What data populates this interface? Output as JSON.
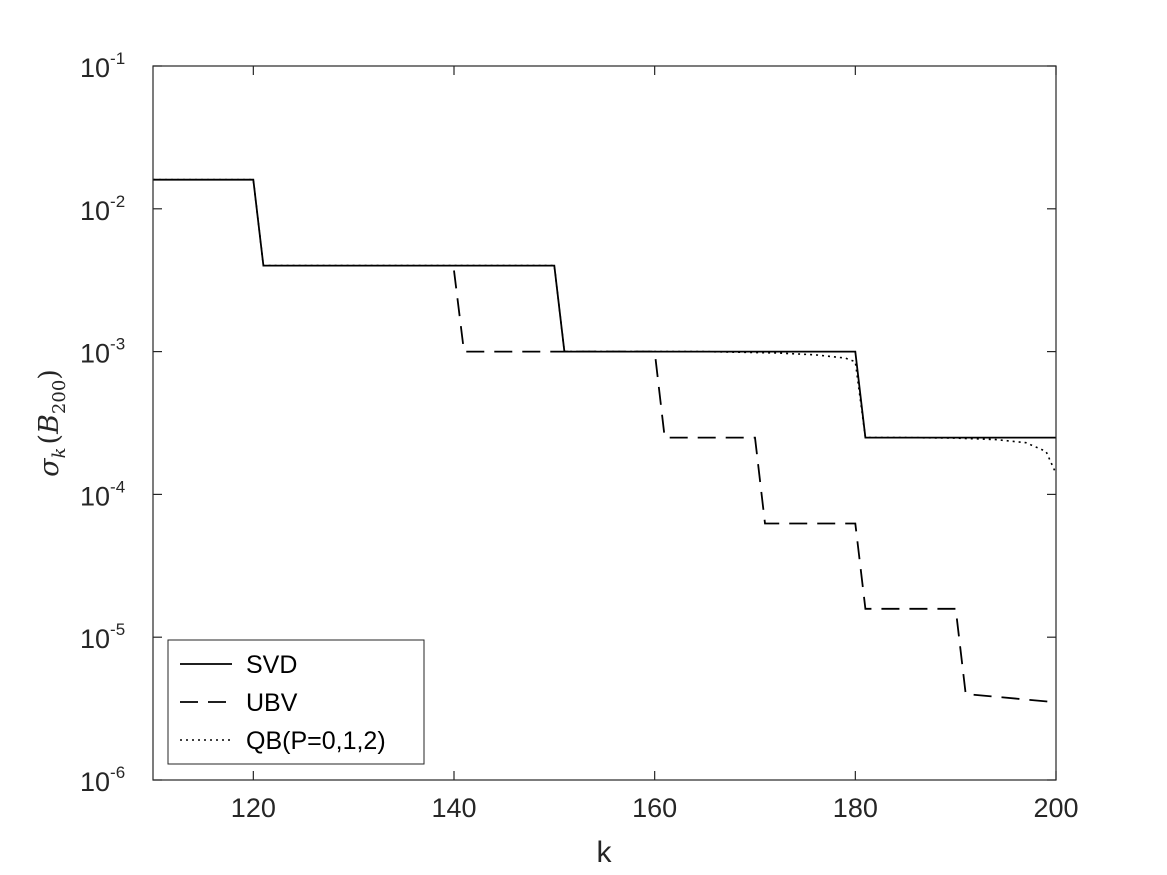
{
  "chart_data": {
    "type": "line",
    "title": "",
    "xlabel": "k",
    "ylabel": {
      "base": "σ",
      "sub": "k",
      "arg": "B",
      "arg_sub": "200"
    },
    "xlim": [
      110,
      200
    ],
    "ylim": [
      1e-06,
      0.1
    ],
    "yscale": "log",
    "xticks": [
      120,
      140,
      160,
      180,
      200
    ],
    "yticks": [
      {
        "value": 1e-06,
        "base": "10",
        "exp": "-6"
      },
      {
        "value": 1e-05,
        "base": "10",
        "exp": "-5"
      },
      {
        "value": 0.0001,
        "base": "10",
        "exp": "-4"
      },
      {
        "value": 0.001,
        "base": "10",
        "exp": "-3"
      },
      {
        "value": 0.01,
        "base": "10",
        "exp": "-2"
      },
      {
        "value": 0.1,
        "base": "10",
        "exp": "-1"
      }
    ],
    "grid": false,
    "legend_position": "bottom-left",
    "series": [
      {
        "name": "SVD",
        "style": "solid",
        "color": "#000000",
        "points": [
          [
            110,
            0.016
          ],
          [
            120,
            0.016
          ],
          [
            121,
            0.004
          ],
          [
            150,
            0.004
          ],
          [
            151,
            0.001
          ],
          [
            180,
            0.001
          ],
          [
            181,
            0.00025
          ],
          [
            200,
            0.00025
          ]
        ]
      },
      {
        "name": "UBV",
        "style": "dashed",
        "color": "#000000",
        "points": [
          [
            140,
            0.0037
          ],
          [
            141,
            0.001
          ],
          [
            160,
            0.001
          ],
          [
            161,
            0.00025
          ],
          [
            170,
            0.00025
          ],
          [
            171,
            6.25e-05
          ],
          [
            180,
            6.25e-05
          ],
          [
            181,
            1.58e-05
          ],
          [
            190,
            1.58e-05
          ],
          [
            191,
            4e-06
          ],
          [
            200,
            3.5e-06
          ]
        ]
      },
      {
        "name": "QB(P=0,1,2)",
        "style": "dotted",
        "color": "#000000",
        "points": [
          [
            110,
            0.016
          ],
          [
            120,
            0.016
          ],
          [
            121,
            0.004
          ],
          [
            150,
            0.004
          ],
          [
            151,
            0.001
          ],
          [
            165,
            0.001
          ],
          [
            172,
            0.00098
          ],
          [
            176,
            0.00095
          ],
          [
            179,
            0.0009
          ],
          [
            180,
            0.00085
          ],
          [
            181,
            0.00025
          ],
          [
            185,
            0.00025
          ],
          [
            190,
            0.000248
          ],
          [
            194,
            0.000242
          ],
          [
            197,
            0.00023
          ],
          [
            199,
            0.0002
          ],
          [
            200,
            0.00014
          ]
        ]
      }
    ]
  }
}
